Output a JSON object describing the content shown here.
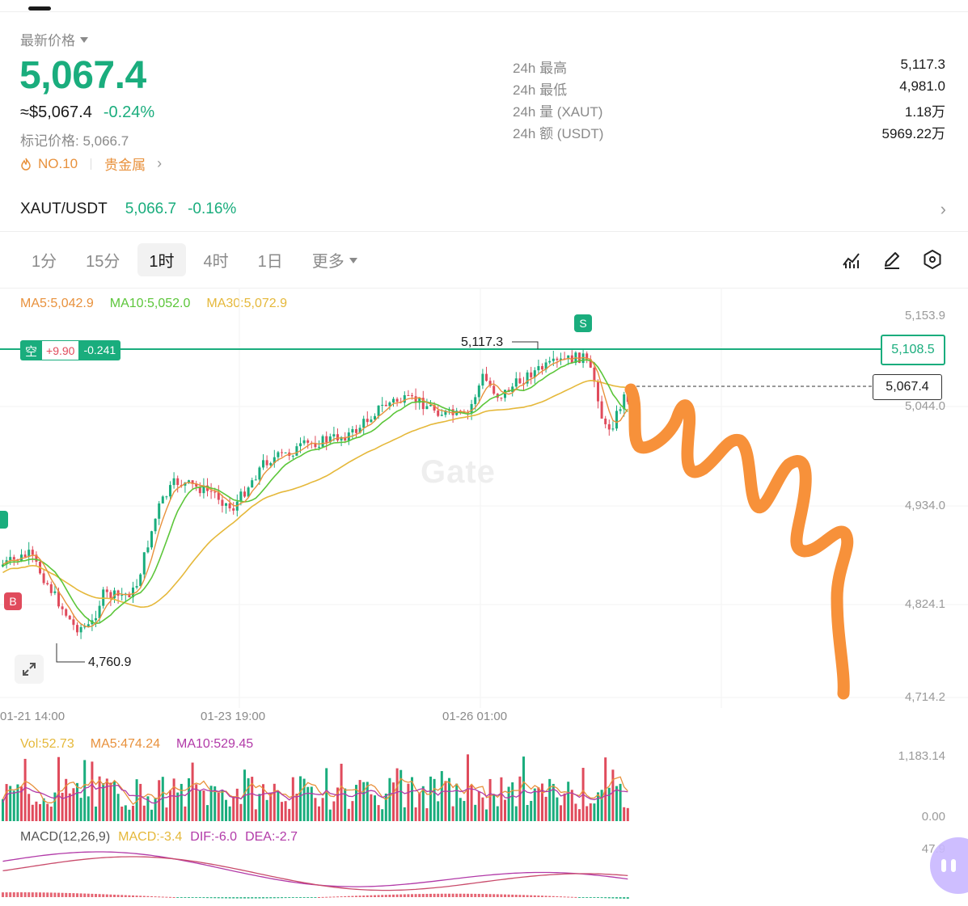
{
  "header": {
    "price_label": "最新价格",
    "last_price": "5,067.4",
    "usd_price": "≈$5,067.4",
    "change_pct": "-0.24%",
    "mark_price": "标记价格: 5,066.7",
    "rank": "NO.10",
    "category": "贵金属"
  },
  "stats": [
    {
      "label": "24h  最高",
      "value": "5,117.3"
    },
    {
      "label": "24h  最低",
      "value": "4,981.0"
    },
    {
      "label": "24h  量 (XAUT)",
      "value": "1.18万"
    },
    {
      "label": "24h  额 (USDT)",
      "value": "5969.22万"
    }
  ],
  "pair": {
    "name": "XAUT/USDT",
    "price": "5,066.7",
    "change": "-0.16%"
  },
  "intervals": [
    {
      "label": "1分"
    },
    {
      "label": "15分"
    },
    {
      "label": "1时",
      "active": true
    },
    {
      "label": "4时"
    },
    {
      "label": "1日"
    },
    {
      "label": "更多"
    }
  ],
  "ma_legend": {
    "ma5": "MA5:5,042.9",
    "ma10": "MA10:5,052.0",
    "ma30": "MA30:5,072.9"
  },
  "position_tag": {
    "side": "空",
    "pnl": "+9.90",
    "ratio": "-0.241",
    "line_price": "5,108.5"
  },
  "current_price_tag": "5,067.4",
  "y_ticks": [
    "5,153.9",
    "5,044.0",
    "4,934.0",
    "4,824.1",
    "4,714.2"
  ],
  "x_ticks": [
    "01-21 14:00",
    "01-23 19:00",
    "01-26 01:00"
  ],
  "high_label": "5,117.3",
  "low_label": "4,760.9",
  "markers": {
    "sell": "S",
    "buy": "B"
  },
  "watermark": "Gate",
  "volume": {
    "vol": "Vol:52.73",
    "ma5": "MA5:474.24",
    "ma10": "MA10:529.45",
    "y_top": "1,183.14",
    "y_bottom": "0.00"
  },
  "macd": {
    "title": "MACD(12,26,9)",
    "macd": "MACD:-3.4",
    "dif": "DIF:-6.0",
    "dea": "DEA:-2.7",
    "y_top": "47.9"
  },
  "colors": {
    "up": "#1aad7d",
    "down": "#e04b5c",
    "ma5": "#e8913c",
    "ma10": "#5cc63a",
    "ma30": "#e5b83a",
    "annotation": "#f7913a"
  }
}
